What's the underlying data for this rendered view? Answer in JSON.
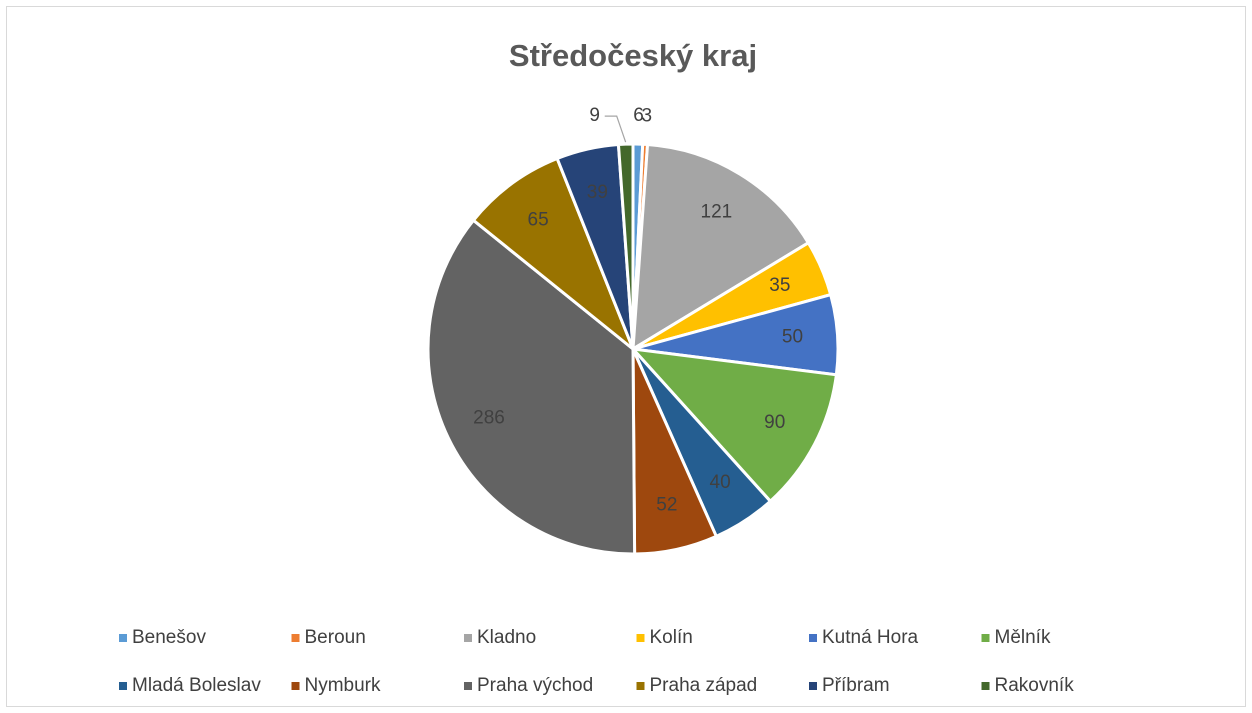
{
  "chart_data": {
    "type": "pie",
    "title": "Středočeský kraj",
    "categories": [
      "Benešov",
      "Beroun",
      "Kladno",
      "Kolín",
      "Kutná Hora",
      "Mělník",
      "Mladá Boleslav",
      "Nymburk",
      "Praha východ",
      "Praha západ",
      "Příbram",
      "Rakovník"
    ],
    "values": [
      6,
      3,
      121,
      35,
      50,
      90,
      40,
      52,
      286,
      65,
      39,
      9
    ],
    "colors": [
      "#5b9bd5",
      "#ed7d31",
      "#a5a5a5",
      "#ffc000",
      "#4472c4",
      "#70ad47",
      "#255e91",
      "#9e480e",
      "#636363",
      "#997300",
      "#264478",
      "#43682b"
    ],
    "legend": "bottom"
  }
}
